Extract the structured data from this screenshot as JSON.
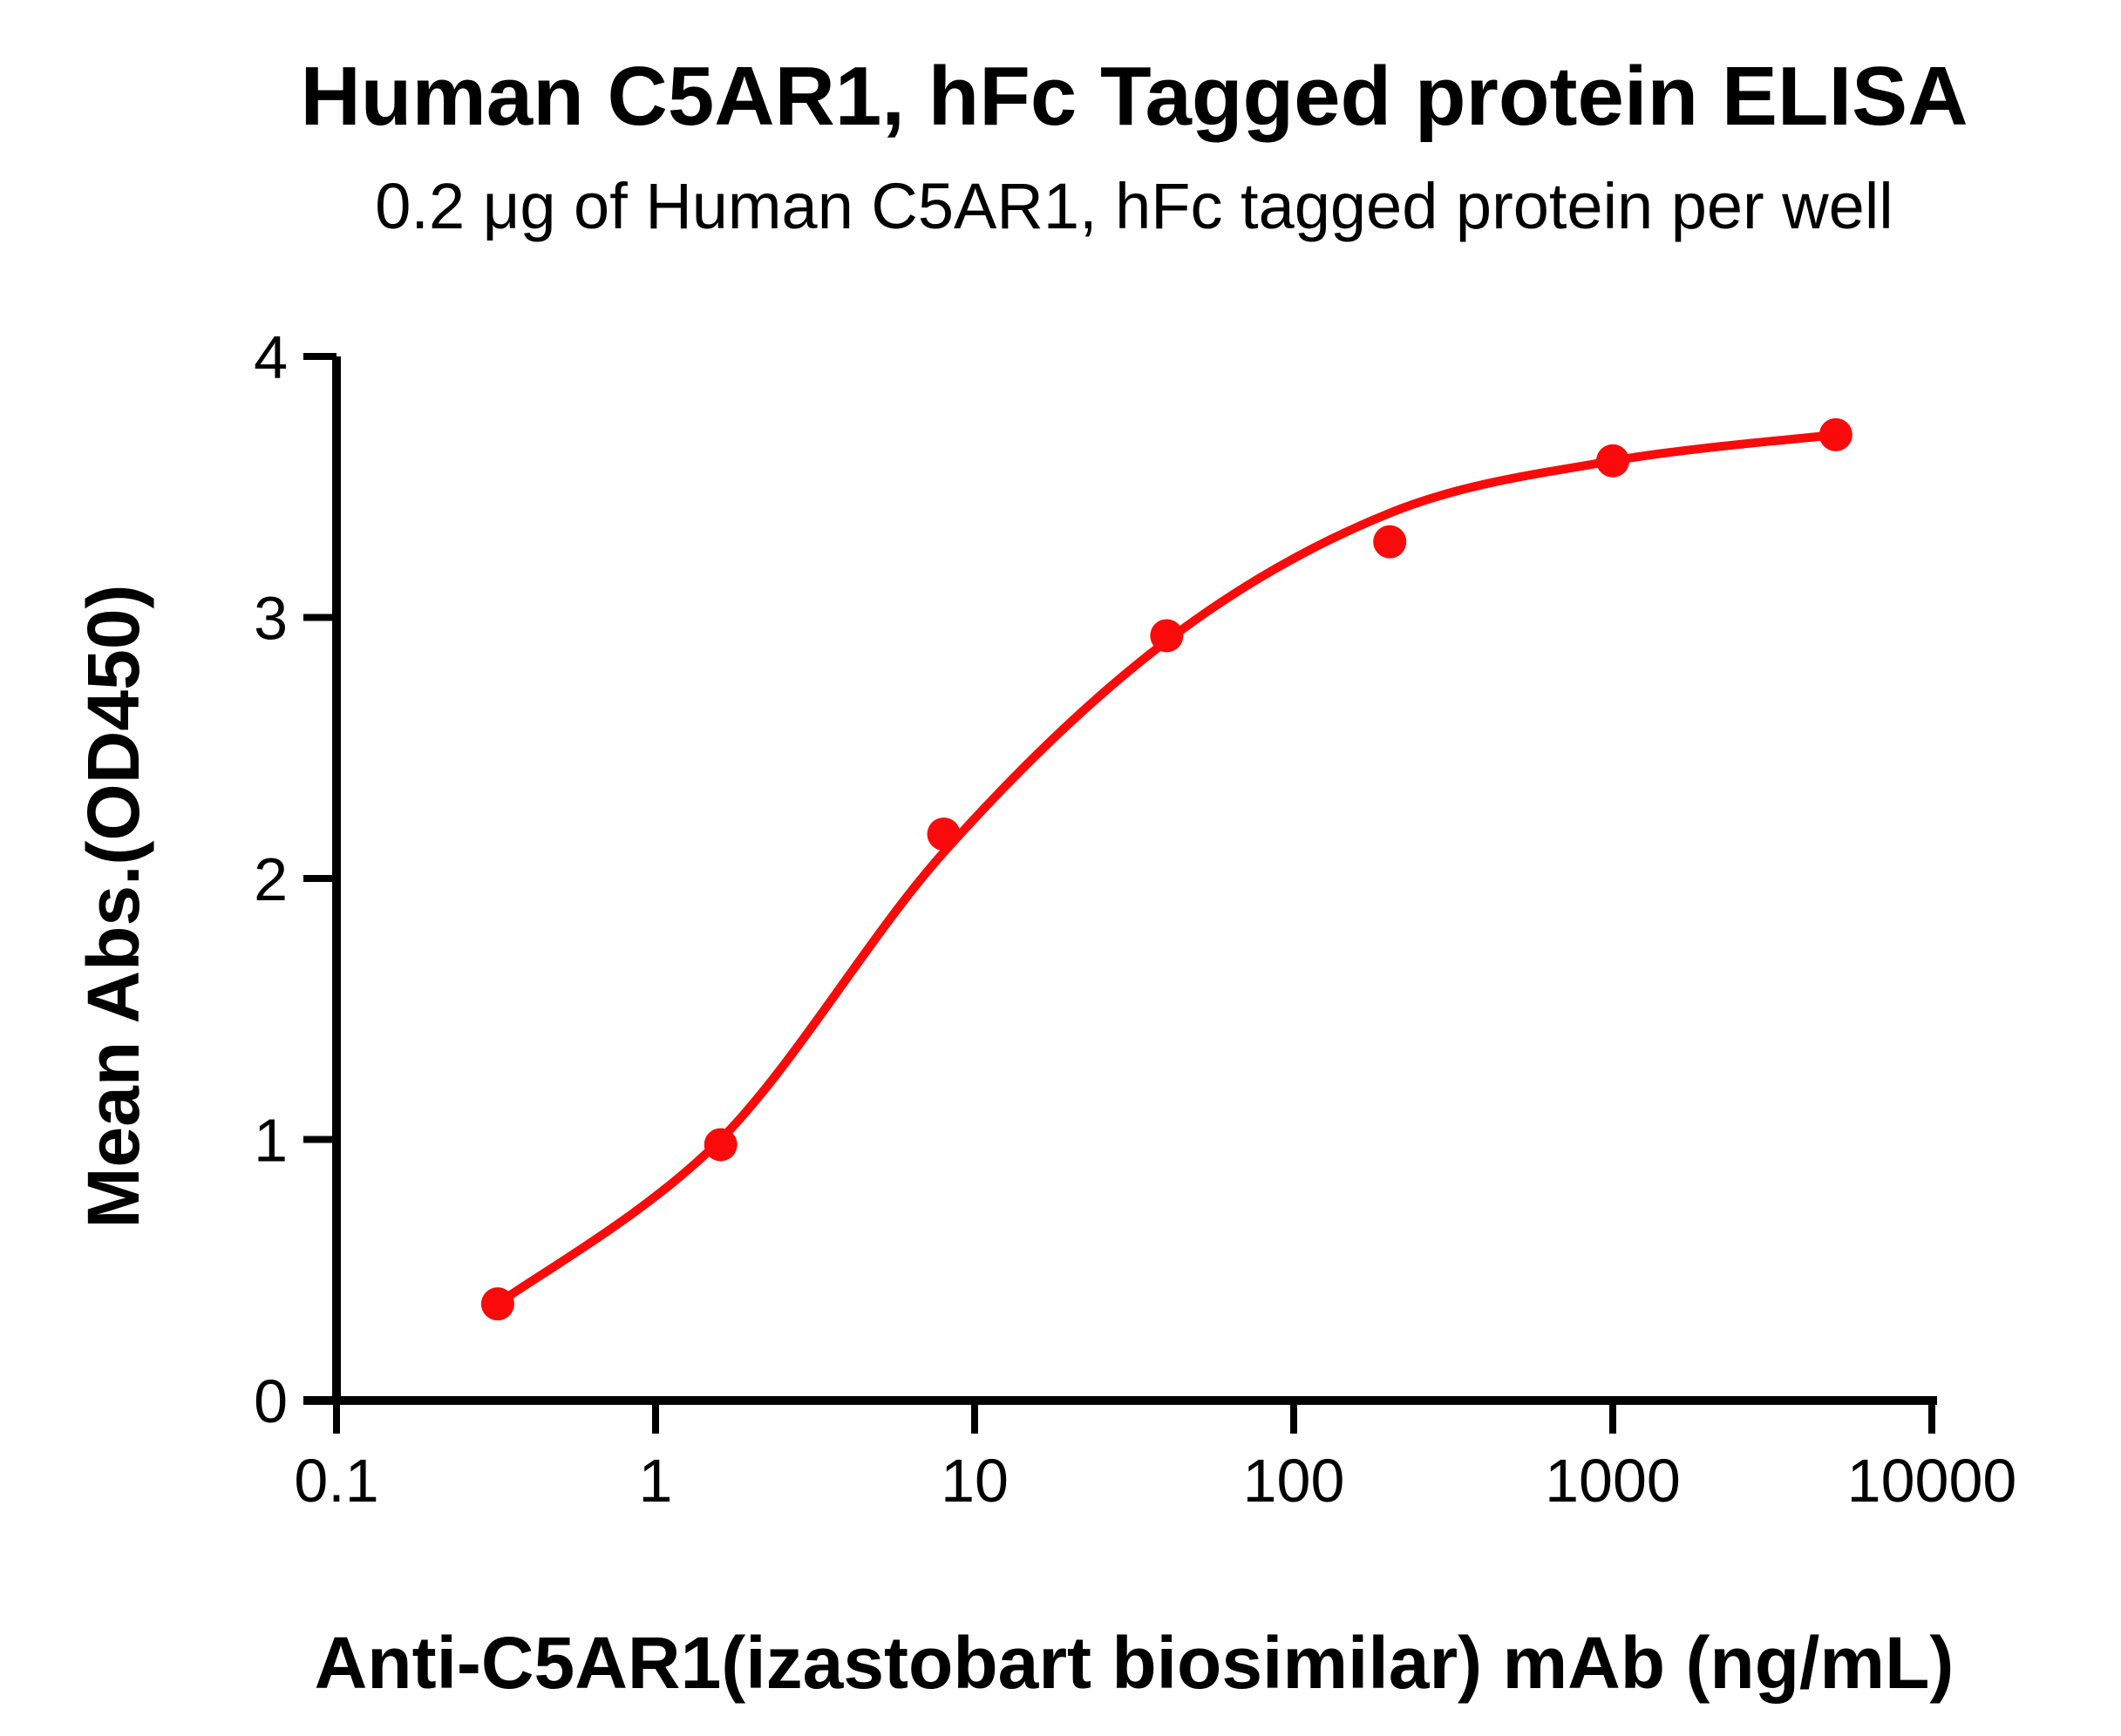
{
  "figure": {
    "title": "Human C5AR1, hFc Tagged protein ELISA",
    "subtitle": "0.2 μg of Human C5AR1, hFc tagged protein per well"
  },
  "chart_data": {
    "type": "scatter",
    "title": "Human C5AR1, hFc Tagged protein ELISA",
    "subtitle": "0.2 μg of Human C5AR1, hFc tagged protein per well",
    "xlabel": "Anti-C5AR1(izastobart biosimilar) mAb (ng/mL)",
    "ylabel": "Mean Abs.(OD450)",
    "x_scale": "log10",
    "xlim": [
      0.1,
      10000
    ],
    "ylim": [
      0,
      4
    ],
    "x_ticks": [
      0.1,
      1,
      10,
      100,
      1000,
      10000
    ],
    "x_tick_labels": [
      "0.1",
      "1",
      "10",
      "100",
      "1000",
      "10000"
    ],
    "y_ticks": [
      0,
      1,
      2,
      3,
      4
    ],
    "y_tick_labels": [
      "0",
      "1",
      "2",
      "3",
      "4"
    ],
    "grid": false,
    "legend": "none",
    "colors": {
      "accent": "#FA0A0A",
      "axis": "#000000",
      "background": "#FFFFFF"
    },
    "series": [
      {
        "name": "Anti-C5AR1(izastobart biosimilar) mAb",
        "marker": "circle",
        "marker_color": "#FA0A0A",
        "line_color": "#FA0A0A",
        "points": [
          {
            "x": 0.32,
            "y": 0.37
          },
          {
            "x": 1.6,
            "y": 0.98
          },
          {
            "x": 8,
            "y": 2.17
          },
          {
            "x": 40,
            "y": 2.93
          },
          {
            "x": 200,
            "y": 3.29
          },
          {
            "x": 1000,
            "y": 3.6
          },
          {
            "x": 5000,
            "y": 3.7
          }
        ],
        "fit_curve": [
          {
            "x": 0.32,
            "y": 0.37
          },
          {
            "x": 1.6,
            "y": 1.0
          },
          {
            "x": 8,
            "y": 2.1
          },
          {
            "x": 40,
            "y": 2.91
          },
          {
            "x": 200,
            "y": 3.4
          },
          {
            "x": 1000,
            "y": 3.6
          },
          {
            "x": 5000,
            "y": 3.7
          }
        ]
      }
    ]
  }
}
